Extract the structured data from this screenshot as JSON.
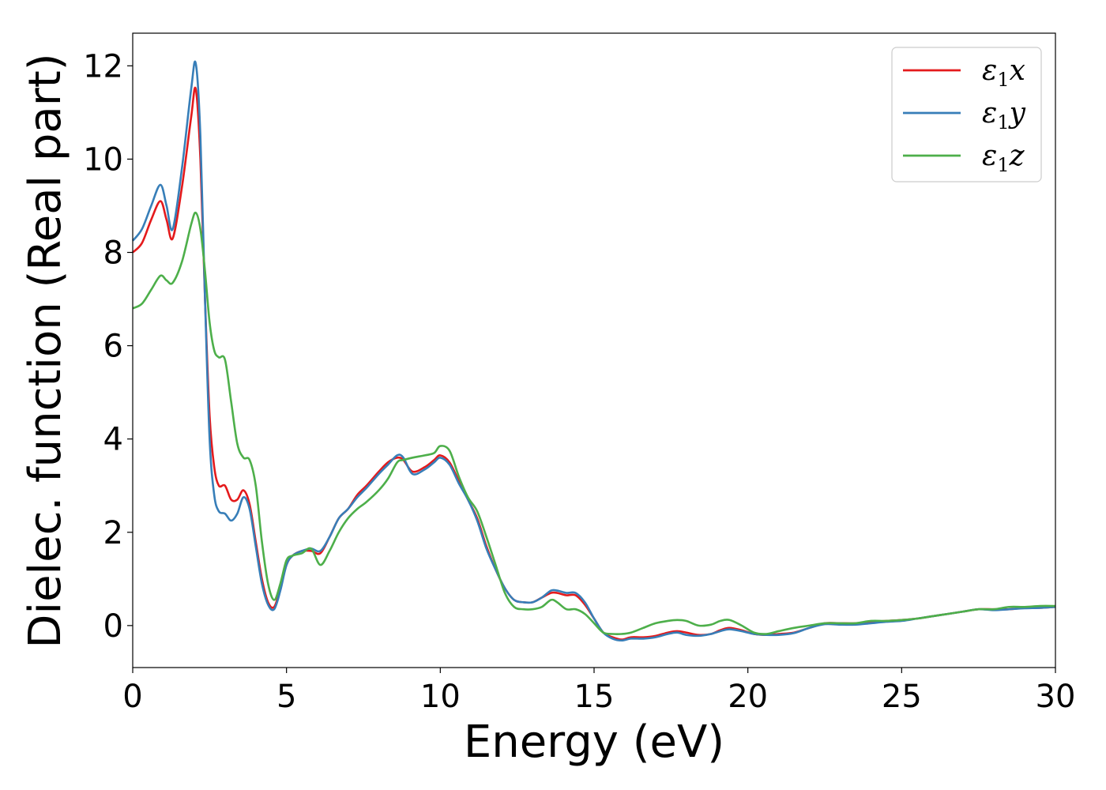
{
  "chart_data": {
    "type": "line",
    "xlabel": "Energy (eV)",
    "ylabel": "Dielec. function (Real part)",
    "xlim": [
      0,
      30
    ],
    "ylim": [
      -0.9,
      12.7
    ],
    "xticks": [
      0,
      5,
      10,
      15,
      20,
      25,
      30
    ],
    "yticks": [
      0,
      2,
      4,
      6,
      8,
      10,
      12
    ],
    "grid": false,
    "legend_position": "top-right",
    "series": [
      {
        "name": "ε1x",
        "legend": {
          "base": "ε",
          "sub": "1",
          "suffix": "x"
        },
        "color": "#e41a1c",
        "x": [
          0,
          0.3,
          0.6,
          0.9,
          1.1,
          1.3,
          1.6,
          1.9,
          2.05,
          2.2,
          2.35,
          2.5,
          2.65,
          2.8,
          3.0,
          3.2,
          3.4,
          3.6,
          3.8,
          4.0,
          4.2,
          4.4,
          4.6,
          4.8,
          5.0,
          5.2,
          5.5,
          5.8,
          6.1,
          6.4,
          6.7,
          7.0,
          7.3,
          7.6,
          8.0,
          8.3,
          8.6,
          8.8,
          9.1,
          9.5,
          9.8,
          10.0,
          10.3,
          10.6,
          10.9,
          11.2,
          11.5,
          11.8,
          12.1,
          12.4,
          12.7,
          13.0,
          13.3,
          13.6,
          13.8,
          14.1,
          14.4,
          14.7,
          15.0,
          15.3,
          15.6,
          15.9,
          16.2,
          16.6,
          17.0,
          17.4,
          17.7,
          18.0,
          18.4,
          18.8,
          19.1,
          19.4,
          19.8,
          20.2,
          20.6,
          21.0,
          21.5,
          22.0,
          22.5,
          23.0,
          23.5,
          24.0,
          24.5,
          25.0,
          25.5,
          26.0,
          26.5,
          27.0,
          27.5,
          28.0,
          28.5,
          29.0,
          29.5,
          30.0
        ],
        "y": [
          8.0,
          8.2,
          8.7,
          9.1,
          8.7,
          8.3,
          9.4,
          10.9,
          11.5,
          10.0,
          7.0,
          4.5,
          3.4,
          3.0,
          3.0,
          2.7,
          2.7,
          2.9,
          2.6,
          1.8,
          1.0,
          0.5,
          0.4,
          0.8,
          1.3,
          1.5,
          1.6,
          1.6,
          1.55,
          1.9,
          2.3,
          2.5,
          2.8,
          3.0,
          3.3,
          3.5,
          3.6,
          3.55,
          3.3,
          3.4,
          3.55,
          3.65,
          3.5,
          3.1,
          2.7,
          2.3,
          1.7,
          1.2,
          0.8,
          0.55,
          0.5,
          0.5,
          0.6,
          0.7,
          0.7,
          0.65,
          0.65,
          0.45,
          0.15,
          -0.15,
          -0.25,
          -0.3,
          -0.25,
          -0.25,
          -0.22,
          -0.15,
          -0.12,
          -0.15,
          -0.2,
          -0.18,
          -0.1,
          -0.05,
          -0.1,
          -0.18,
          -0.2,
          -0.18,
          -0.15,
          -0.05,
          0.05,
          0.05,
          0.05,
          0.08,
          0.1,
          0.12,
          0.15,
          0.2,
          0.25,
          0.3,
          0.35,
          0.35,
          0.35,
          0.38,
          0.38,
          0.4
        ]
      },
      {
        "name": "ε1y",
        "legend": {
          "base": "ε",
          "sub": "1",
          "suffix": "y"
        },
        "color": "#377eb8",
        "x": [
          0,
          0.3,
          0.6,
          0.9,
          1.1,
          1.3,
          1.6,
          1.9,
          2.05,
          2.2,
          2.35,
          2.5,
          2.65,
          2.8,
          3.0,
          3.2,
          3.4,
          3.6,
          3.8,
          4.0,
          4.2,
          4.4,
          4.6,
          4.8,
          5.0,
          5.2,
          5.5,
          5.8,
          6.1,
          6.4,
          6.7,
          7.0,
          7.3,
          7.6,
          8.0,
          8.3,
          8.6,
          8.8,
          9.1,
          9.5,
          9.8,
          10.0,
          10.3,
          10.6,
          10.9,
          11.2,
          11.5,
          11.8,
          12.1,
          12.4,
          12.7,
          13.0,
          13.3,
          13.6,
          13.8,
          14.1,
          14.4,
          14.7,
          15.0,
          15.3,
          15.6,
          15.9,
          16.2,
          16.6,
          17.0,
          17.4,
          17.7,
          18.0,
          18.4,
          18.8,
          19.1,
          19.4,
          19.8,
          20.2,
          20.6,
          21.0,
          21.5,
          22.0,
          22.5,
          23.0,
          23.5,
          24.0,
          24.5,
          25.0,
          25.5,
          26.0,
          26.5,
          27.0,
          27.5,
          28.0,
          28.5,
          29.0,
          29.5,
          30.0
        ],
        "y": [
          8.25,
          8.5,
          9.0,
          9.45,
          9.0,
          8.5,
          9.8,
          11.5,
          12.05,
          10.5,
          7.0,
          4.0,
          2.8,
          2.45,
          2.4,
          2.25,
          2.4,
          2.75,
          2.5,
          1.7,
          0.9,
          0.45,
          0.35,
          0.75,
          1.3,
          1.5,
          1.6,
          1.65,
          1.6,
          1.9,
          2.3,
          2.5,
          2.75,
          2.95,
          3.25,
          3.45,
          3.65,
          3.6,
          3.25,
          3.35,
          3.5,
          3.6,
          3.45,
          3.05,
          2.7,
          2.25,
          1.65,
          1.2,
          0.8,
          0.55,
          0.5,
          0.5,
          0.6,
          0.75,
          0.75,
          0.7,
          0.7,
          0.5,
          0.15,
          -0.15,
          -0.28,
          -0.32,
          -0.28,
          -0.28,
          -0.25,
          -0.18,
          -0.15,
          -0.2,
          -0.22,
          -0.18,
          -0.12,
          -0.08,
          -0.12,
          -0.18,
          -0.2,
          -0.2,
          -0.16,
          -0.05,
          0.03,
          0.02,
          0.02,
          0.05,
          0.08,
          0.1,
          0.15,
          0.2,
          0.25,
          0.3,
          0.35,
          0.33,
          0.35,
          0.37,
          0.38,
          0.4
        ]
      },
      {
        "name": "ε1z",
        "legend": {
          "base": "ε",
          "sub": "1",
          "suffix": "z"
        },
        "color": "#4daf4a",
        "x": [
          0,
          0.3,
          0.6,
          0.9,
          1.1,
          1.3,
          1.6,
          1.9,
          2.05,
          2.2,
          2.35,
          2.5,
          2.65,
          2.8,
          3.0,
          3.2,
          3.4,
          3.6,
          3.8,
          4.0,
          4.2,
          4.4,
          4.6,
          4.8,
          5.0,
          5.2,
          5.5,
          5.8,
          6.1,
          6.4,
          6.7,
          7.0,
          7.3,
          7.6,
          8.0,
          8.3,
          8.6,
          8.8,
          9.1,
          9.5,
          9.8,
          10.0,
          10.3,
          10.6,
          10.9,
          11.2,
          11.5,
          11.8,
          12.1,
          12.4,
          12.7,
          13.0,
          13.3,
          13.6,
          13.8,
          14.1,
          14.4,
          14.7,
          15.0,
          15.3,
          15.6,
          15.9,
          16.2,
          16.6,
          17.0,
          17.4,
          17.7,
          18.0,
          18.4,
          18.8,
          19.1,
          19.4,
          19.8,
          20.2,
          20.6,
          21.0,
          21.5,
          22.0,
          22.5,
          23.0,
          23.5,
          24.0,
          24.5,
          25.0,
          25.5,
          26.0,
          26.5,
          27.0,
          27.5,
          28.0,
          28.5,
          29.0,
          29.5,
          30.0
        ],
        "y": [
          6.8,
          6.9,
          7.2,
          7.5,
          7.4,
          7.35,
          7.8,
          8.6,
          8.85,
          8.5,
          7.6,
          6.5,
          5.9,
          5.75,
          5.7,
          4.8,
          3.9,
          3.6,
          3.55,
          3.0,
          1.8,
          0.9,
          0.55,
          0.9,
          1.4,
          1.5,
          1.55,
          1.65,
          1.3,
          1.6,
          2.0,
          2.3,
          2.5,
          2.65,
          2.9,
          3.15,
          3.5,
          3.55,
          3.6,
          3.65,
          3.7,
          3.85,
          3.75,
          3.2,
          2.75,
          2.45,
          1.9,
          1.3,
          0.7,
          0.4,
          0.35,
          0.35,
          0.4,
          0.55,
          0.5,
          0.35,
          0.35,
          0.25,
          0.05,
          -0.15,
          -0.18,
          -0.18,
          -0.15,
          -0.05,
          0.05,
          0.1,
          0.12,
          0.1,
          0.0,
          0.02,
          0.1,
          0.12,
          0.0,
          -0.15,
          -0.18,
          -0.12,
          -0.05,
          0.0,
          0.05,
          0.05,
          0.05,
          0.1,
          0.1,
          0.12,
          0.15,
          0.2,
          0.25,
          0.3,
          0.35,
          0.35,
          0.4,
          0.4,
          0.42,
          0.42
        ]
      }
    ]
  }
}
